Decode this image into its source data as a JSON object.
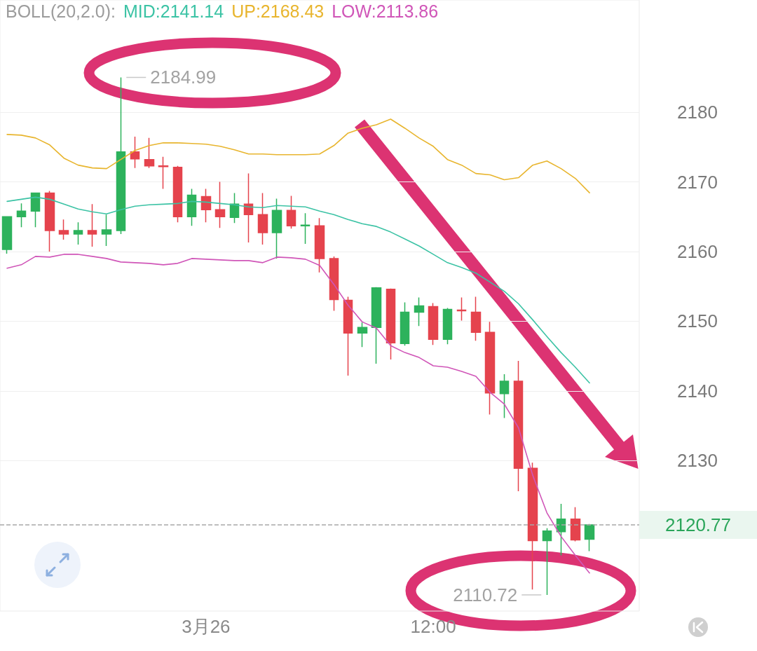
{
  "chart_data": {
    "type": "candlestick",
    "title": "BOLL(20,2.0):",
    "categories": [
      null,
      null,
      null,
      null,
      null,
      null,
      null,
      null,
      null,
      null,
      null,
      null,
      null,
      null,
      "3月26",
      null,
      null,
      null,
      null,
      null,
      null,
      null,
      null,
      null,
      null,
      null,
      null,
      null,
      null,
      null,
      "12:00",
      null,
      null,
      null,
      null,
      null,
      null,
      null,
      null,
      null,
      null,
      null
    ],
    "ohlc": [
      [
        2160.3,
        2165.0,
        2159.7,
        2165.0
      ],
      [
        2165.0,
        2166.9,
        2163.5,
        2165.8
      ],
      [
        2165.8,
        2168.4,
        2163.5,
        2168.4
      ],
      [
        2168.4,
        2168.7,
        2160.0,
        2163.0
      ],
      [
        2163.0,
        2164.6,
        2161.7,
        2162.5
      ],
      [
        2162.5,
        2164.2,
        2161.0,
        2163.0
      ],
      [
        2163.0,
        2166.8,
        2160.7,
        2162.5
      ],
      [
        2162.5,
        2165.3,
        2160.8,
        2163.1
      ],
      [
        2163.0,
        2184.99,
        2162.5,
        2174.3
      ],
      [
        2174.3,
        2176.5,
        2172.0,
        2173.3
      ],
      [
        2173.2,
        2176.3,
        2172.0,
        2172.3
      ],
      [
        2172.3,
        2173.6,
        2169.0,
        2172.2
      ],
      [
        2172.1,
        2172.3,
        2164.2,
        2165.0
      ],
      [
        2165.0,
        2169.0,
        2163.7,
        2168.1
      ],
      [
        2167.9,
        2169.0,
        2164.2,
        2166.0
      ],
      [
        2166.0,
        2170.0,
        2163.4,
        2165.0
      ],
      [
        2164.9,
        2168.4,
        2164.1,
        2166.8
      ],
      [
        2166.8,
        2171.2,
        2161.3,
        2165.3
      ],
      [
        2165.3,
        2168.4,
        2161.0,
        2162.7
      ],
      [
        2162.7,
        2167.6,
        2159.0,
        2165.9
      ],
      [
        2165.9,
        2168.0,
        2163.3,
        2163.7
      ],
      [
        2163.7,
        2165.5,
        2161.1,
        2163.8
      ],
      [
        2163.7,
        2164.8,
        2157.0,
        2159.0
      ],
      [
        2159.0,
        2159.3,
        2151.5,
        2153.1
      ],
      [
        2153.0,
        2153.5,
        2142.2,
        2148.3
      ],
      [
        2148.3,
        2149.8,
        2146.3,
        2149.1
      ],
      [
        2149.1,
        2154.9,
        2143.9,
        2154.8
      ],
      [
        2154.6,
        2154.7,
        2144.5,
        2146.9
      ],
      [
        2146.8,
        2152.7,
        2146.5,
        2151.3
      ],
      [
        2151.3,
        2153.4,
        2149.3,
        2152.2
      ],
      [
        2152.1,
        2152.6,
        2146.6,
        2147.4
      ],
      [
        2147.4,
        2151.9,
        2146.7,
        2151.7
      ],
      [
        2151.6,
        2153.4,
        2150.1,
        2151.5
      ],
      [
        2151.3,
        2153.5,
        2147.2,
        2148.4
      ],
      [
        2148.4,
        2149.9,
        2136.6,
        2139.7
      ],
      [
        2139.6,
        2142.4,
        2136.1,
        2141.4
      ],
      [
        2141.4,
        2144.3,
        2125.6,
        2128.9
      ],
      [
        2128.9,
        2129.7,
        2111.5,
        2118.5
      ],
      [
        2118.5,
        2120.3,
        2110.72,
        2119.9
      ],
      [
        2119.8,
        2123.8,
        2116.4,
        2121.6
      ],
      [
        2121.6,
        2123.3,
        2118.4,
        2118.6
      ],
      [
        2118.7,
        2120.9,
        2117.0,
        2120.77
      ]
    ],
    "colors": [
      "#2db25c",
      "#2db25c",
      "#2db25c",
      "#e5434d",
      "#e5434d",
      "#2db25c",
      "#e5434d",
      "#2db25c",
      "#2db25c",
      "#e5434d",
      "#e5434d",
      "#e5434d",
      "#e5434d",
      "#2db25c",
      "#e5434d",
      "#e5434d",
      "#2db25c",
      "#e5434d",
      "#e5434d",
      "#2db25c",
      "#e5434d",
      "#2db25c",
      "#e5434d",
      "#e5434d",
      "#e5434d",
      "#2db25c",
      "#2db25c",
      "#e5434d",
      "#2db25c",
      "#2db25c",
      "#e5434d",
      "#2db25c",
      "#e5434d",
      "#e5434d",
      "#e5434d",
      "#2db25c",
      "#e5434d",
      "#e5434d",
      "#2db25c",
      "#2db25c",
      "#e5434d",
      "#2db25c"
    ],
    "series": [
      {
        "name": "MID:2141.14",
        "type": "line",
        "color": "#3cc3a5",
        "values": [
          2167.2,
          2167.5,
          2167.8,
          2167.5,
          2166.8,
          2166.1,
          2165.7,
          2165.4,
          2166.0,
          2166.5,
          2166.7,
          2166.8,
          2166.9,
          2167.2,
          2167.1,
          2166.9,
          2166.7,
          2166.4,
          2166.3,
          2166.6,
          2166.5,
          2166.4,
          2165.8,
          2165.3,
          2164.6,
          2164.0,
          2163.6,
          2162.8,
          2161.8,
          2160.8,
          2159.6,
          2158.4,
          2157.7,
          2156.9,
          2155.6,
          2154.3,
          2152.5,
          2150.2,
          2147.8,
          2145.5,
          2143.4,
          2141.14
        ]
      },
      {
        "name": "UP:2168.43",
        "type": "line",
        "color": "#e8b52e",
        "values": [
          2176.8,
          2176.7,
          2176.3,
          2175.3,
          2173.4,
          2172.4,
          2172.0,
          2171.9,
          2173.2,
          2174.5,
          2175.2,
          2175.6,
          2175.6,
          2175.5,
          2175.4,
          2175.1,
          2174.6,
          2174.0,
          2174.0,
          2173.9,
          2173.9,
          2173.9,
          2174.0,
          2175.2,
          2177.0,
          2177.7,
          2178.2,
          2179.0,
          2177.7,
          2176.3,
          2175.1,
          2173.2,
          2172.4,
          2171.2,
          2171.0,
          2170.3,
          2170.6,
          2172.4,
          2173.0,
          2171.9,
          2170.5,
          2168.43
        ]
      },
      {
        "name": "LOW:2113.86",
        "type": "line",
        "color": "#d056b8",
        "values": [
          2157.6,
          2158.1,
          2159.3,
          2159.2,
          2159.6,
          2159.6,
          2159.3,
          2159.0,
          2158.5,
          2158.4,
          2158.3,
          2158.1,
          2158.3,
          2159.0,
          2158.9,
          2158.8,
          2158.7,
          2158.7,
          2158.4,
          2159.2,
          2159.1,
          2158.9,
          2158.0,
          2155.3,
          2152.3,
          2149.9,
          2149.0,
          2146.5,
          2145.5,
          2144.8,
          2143.6,
          2143.4,
          2142.8,
          2142.1,
          2139.8,
          2138.1,
          2134.7,
          2127.9,
          2122.5,
          2119.1,
          2116.4,
          2113.86
        ]
      }
    ],
    "ylim": [
      2108.4,
      2196.1
    ],
    "yticks": [
      2130,
      2140,
      2150,
      2160,
      2170,
      2180
    ],
    "grid": "y",
    "legend": "top",
    "ref_lines": [
      {
        "axis": "y",
        "value": 2120.77,
        "label": "2120.77",
        "color": "#a8a8a8",
        "line_style": "dashed"
      }
    ],
    "annotations": [
      "2184.99",
      "2110.72"
    ]
  }
}
